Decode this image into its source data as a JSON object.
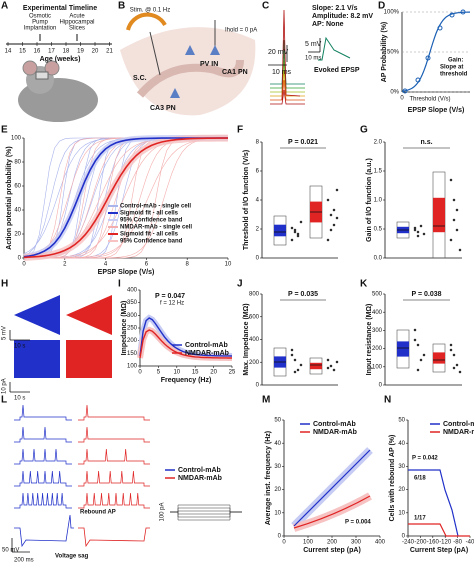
{
  "A": {
    "label": "A",
    "title": "Experimental Timeline",
    "event1": [
      "Osmotic",
      "Pump",
      "Implantation"
    ],
    "event2": [
      "Acute",
      "Hippocampal",
      "Slices"
    ],
    "ticks": [
      "14",
      "15",
      "16",
      "17",
      "18",
      "19",
      "20",
      "21"
    ],
    "axis": "Age (weeks)"
  },
  "B": {
    "label": "B",
    "stim": "Stim. @ 0.1 Hz",
    "ihold": "Ihold = 0 pA",
    "regions": [
      "PV IN",
      "CA1 PN",
      "CA3 PN",
      "S.C."
    ]
  },
  "C": {
    "label": "C",
    "slope": "Slope: 2.1 V/s",
    "amplitude": "Amplitude: 8.2 mV",
    "ap": "AP: None",
    "scale": [
      "20 mV",
      "10 ms",
      "5 mV",
      "10 ms"
    ],
    "evoked": "Evoked EPSP"
  },
  "D": {
    "label": "D",
    "yticks": [
      "0%",
      "50%",
      "100%"
    ],
    "xtick": "0",
    "ylabel": "AP Probability (%)",
    "xlabel": "EPSP Slope (V/s)",
    "gain": [
      "Gain:",
      "Slope at",
      "threshold"
    ],
    "threshold": "Threshold (V/s)"
  },
  "E": {
    "label": "E",
    "yticks": [
      "0",
      "20",
      "40",
      "60",
      "80",
      "100"
    ],
    "xticks": [
      "0",
      "2",
      "4",
      "6",
      "8",
      "10"
    ],
    "ylabel": "Action potential probability (%)",
    "xlabel": "EPSP Slope (V/s)",
    "legend": [
      "Control-mAb - single cell",
      "Sigmoid fit - all cells",
      "95% Confidence band",
      "NMDAR-mAb - single cell",
      "Sigmoid fit - all cells",
      "95% Confidence band"
    ]
  },
  "F": {
    "label": "F",
    "p": "P = 0.021",
    "yticks": [
      "0",
      "2",
      "4",
      "6",
      "8"
    ],
    "ylabel": "Threshold of I/O function (V/s)"
  },
  "G": {
    "label": "G",
    "p": "n.s.",
    "yticks": [
      "0.0",
      "0.5",
      "1.0",
      "1.5",
      "2.0"
    ],
    "ylabel": "Gain of I/O function (a.u.)"
  },
  "H": {
    "label": "H",
    "scale": [
      "5 mV",
      "10 s",
      "10 pA",
      "10 s"
    ]
  },
  "I": {
    "label": "I",
    "p": "P = 0.047",
    "f": "f = 12 Hz",
    "yticks": [
      "100",
      "150",
      "200",
      "250",
      "300",
      "350",
      "400"
    ],
    "xticks": [
      "0",
      "5",
      "10",
      "15",
      "20",
      "25"
    ],
    "ylabel": "Impedance (MΩ)",
    "xlabel": "Frequency (Hz)",
    "legend": [
      "Control-mAb",
      "NMDAR-mAb"
    ]
  },
  "J": {
    "label": "J",
    "p": "P = 0.035",
    "yticks": [
      "0",
      "200",
      "400",
      "600",
      "800"
    ],
    "ylabel": "Max. Impedance (MΩ)"
  },
  "K": {
    "label": "K",
    "p": "P = 0.038",
    "yticks": [
      "0",
      "100",
      "200",
      "300",
      "400",
      "500"
    ],
    "ylabel": "Input resistance (MΩ)"
  },
  "L": {
    "label": "L",
    "rebound": "Rebound AP",
    "sag": "Voltage sag",
    "scale": [
      "50 mV",
      "200 ms",
      "100 pA"
    ],
    "legend": [
      "Control-mAb",
      "NMDAR-mAb"
    ]
  },
  "M": {
    "label": "M",
    "p": "P = 0.004",
    "yticks": [
      "0",
      "10",
      "20",
      "30",
      "40",
      "50"
    ],
    "xticks": [
      "0",
      "100",
      "200",
      "300",
      "400"
    ],
    "ylabel": "Average inst. frequency (Hz)",
    "xlabel": "Current step (pA)",
    "legend": [
      "Control-mAb",
      "NMDAR-mAb"
    ]
  },
  "N": {
    "label": "N",
    "p": "P = 0.042",
    "n1": "6/18",
    "n2": "1/17",
    "yticks": [
      "0",
      "10",
      "20",
      "30",
      "40",
      "50"
    ],
    "xticks": [
      "-240",
      "-200",
      "-160",
      "-120",
      "-80",
      "-40"
    ],
    "ylabel": "Cells with rebound AP (%)",
    "xlabel": "Current Step (pA)",
    "legend": [
      "Control-mAb",
      "NMDAR-mAb"
    ]
  }
}
